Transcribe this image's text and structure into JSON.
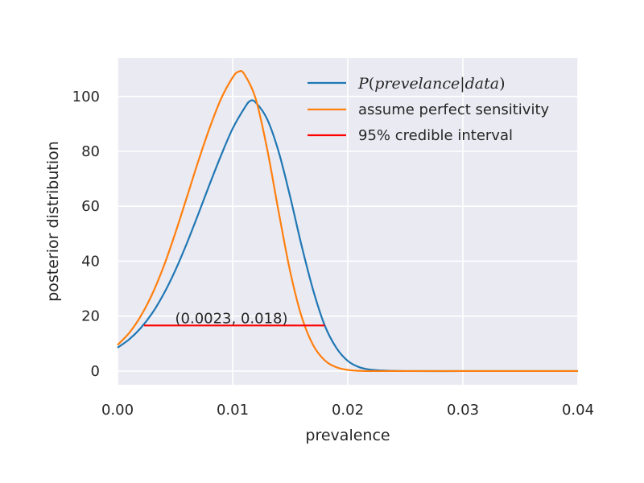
{
  "chart_data": {
    "type": "line",
    "xlabel": "prevalence",
    "ylabel": "posterior distribution",
    "xlim": [
      0.0,
      0.04
    ],
    "ylim": [
      -5,
      114
    ],
    "xticks": [
      0.0,
      0.01,
      0.02,
      0.03,
      0.04
    ],
    "xtick_labels": [
      "0.00",
      "0.01",
      "0.02",
      "0.03",
      "0.04"
    ],
    "yticks": [
      0,
      20,
      40,
      60,
      80,
      100
    ],
    "ytick_labels": [
      "0",
      "20",
      "40",
      "60",
      "80",
      "100"
    ],
    "grid": true,
    "legend_position": "top-right",
    "series": [
      {
        "name": "P(prevelance|data)",
        "legend_parts": [
          "P",
          "(",
          "prevelance",
          "|",
          "data",
          ")"
        ],
        "color": "#1f77b4",
        "x": [
          0.0,
          0.001,
          0.002,
          0.003,
          0.004,
          0.005,
          0.006,
          0.007,
          0.008,
          0.009,
          0.01,
          0.011,
          0.0115,
          0.012,
          0.013,
          0.014,
          0.015,
          0.016,
          0.017,
          0.018,
          0.019,
          0.02,
          0.021,
          0.022,
          0.023,
          0.025,
          0.03,
          0.035,
          0.04
        ],
        "y": [
          8.5,
          11.5,
          15.6,
          21.0,
          28.0,
          36.5,
          46.3,
          57.0,
          68.0,
          78.6,
          88.3,
          95.6,
          98.3,
          97.8,
          91.7,
          79.8,
          63.4,
          45.5,
          29.4,
          16.6,
          8.5,
          3.7,
          1.4,
          0.5,
          0.2,
          0.0,
          0.0,
          0.0,
          0.0
        ]
      },
      {
        "name": "assume perfect sensitivity",
        "color": "#ff7f0e",
        "x": [
          0.0,
          0.001,
          0.002,
          0.003,
          0.004,
          0.005,
          0.006,
          0.007,
          0.008,
          0.009,
          0.01,
          0.0105,
          0.011,
          0.012,
          0.013,
          0.014,
          0.015,
          0.016,
          0.017,
          0.018,
          0.019,
          0.02,
          0.021,
          0.022,
          0.025,
          0.03,
          0.035,
          0.04
        ],
        "y": [
          9.5,
          13.8,
          19.9,
          27.9,
          38.0,
          50.0,
          63.0,
          76.2,
          88.5,
          99.2,
          106.9,
          109.0,
          108.2,
          99.2,
          80.8,
          57.9,
          36.2,
          19.7,
          9.4,
          3.9,
          1.4,
          0.4,
          0.1,
          0.0,
          0.0,
          0.0,
          0.0,
          0.0
        ]
      },
      {
        "name": "95% credible interval",
        "color": "#ff0000",
        "x": [
          0.0023,
          0.018
        ],
        "y": [
          16.6,
          16.6
        ]
      }
    ],
    "annotations": [
      {
        "text": "(0.0023, 0.018)",
        "x": 0.005,
        "y": 17.4
      }
    ]
  }
}
